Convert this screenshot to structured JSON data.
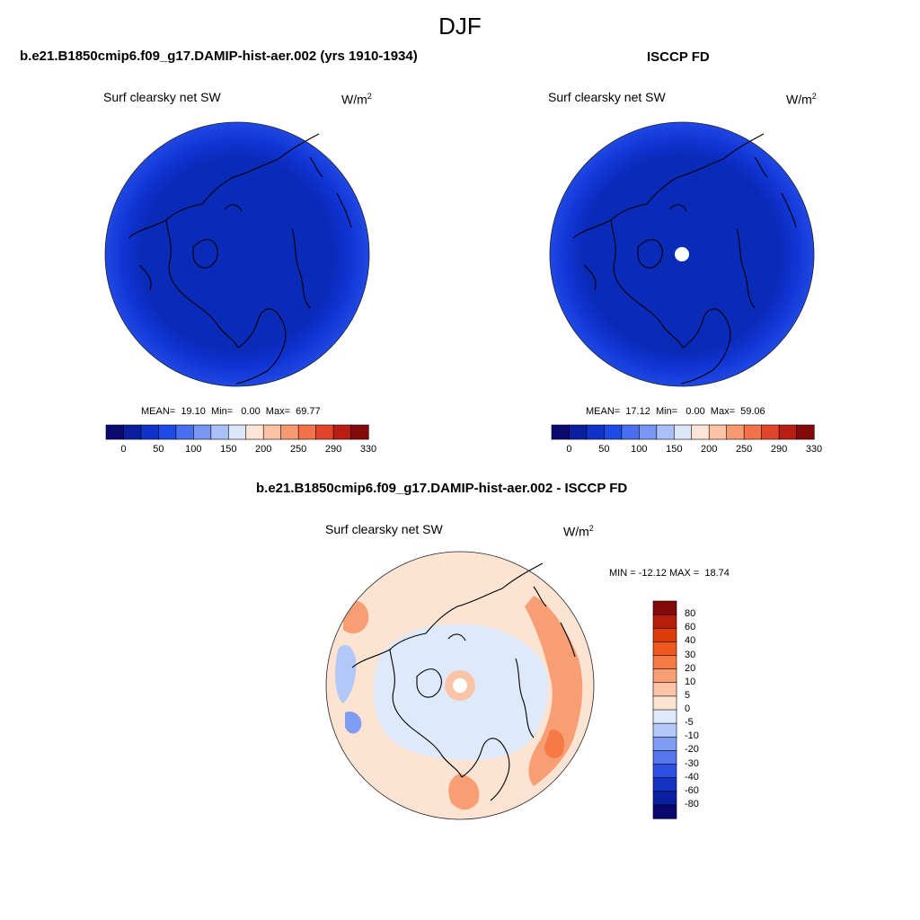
{
  "figure": {
    "title": "DJF"
  },
  "panels": {
    "model": {
      "title": "b.e21.B1850cmip6.f09_g17.DAMIP-hist-aer.002 (yrs 1910-1934)",
      "variable": "Surf clearsky net SW",
      "units_base": "W/m",
      "units_exp": "2",
      "stats": "MEAN=  19.10  Min=   0.00  Max=  69.77"
    },
    "obs": {
      "title": "ISCCP FD",
      "variable": "Surf clearsky net SW",
      "units_base": "W/m",
      "units_exp": "2",
      "stats": "MEAN=  17.12  Min=   0.00  Max=  59.06"
    },
    "diff": {
      "title": "b.e21.B1850cmip6.f09_g17.DAMIP-hist-aer.002 - ISCCP FD",
      "variable": "Surf clearsky net SW",
      "units_base": "W/m",
      "units_exp": "2",
      "stats": "MIN = -12.12 MAX =  18.74"
    }
  },
  "colorbars": {
    "absolute": {
      "orientation": "horizontal",
      "labels": [
        "0",
        "50",
        "100",
        "150",
        "200",
        "250",
        "290",
        "330"
      ],
      "colors": [
        "#0a0a6e",
        "#0a1fa0",
        "#0f32c8",
        "#1e4be6",
        "#4a6ef0",
        "#7896f2",
        "#aac0f6",
        "#dce6fa",
        "#fde4d4",
        "#fbc2a4",
        "#f79a72",
        "#f2724a",
        "#e2452a",
        "#b81e14",
        "#820a0a"
      ]
    },
    "difference": {
      "orientation": "vertical",
      "labels": [
        "80",
        "60",
        "40",
        "30",
        "20",
        "10",
        "5",
        "0",
        "-5",
        "-10",
        "-20",
        "-30",
        "-40",
        "-60",
        "-80"
      ],
      "colors": [
        "#820a0a",
        "#b41e0a",
        "#dc3c0a",
        "#f0581e",
        "#f57a46",
        "#f89e74",
        "#fbc4a6",
        "#fde4d2",
        "#deeafc",
        "#b2c8f8",
        "#7e9cf2",
        "#5478ec",
        "#2e50e2",
        "#1632c0",
        "#0a1ea0",
        "#08086e"
      ]
    }
  }
}
